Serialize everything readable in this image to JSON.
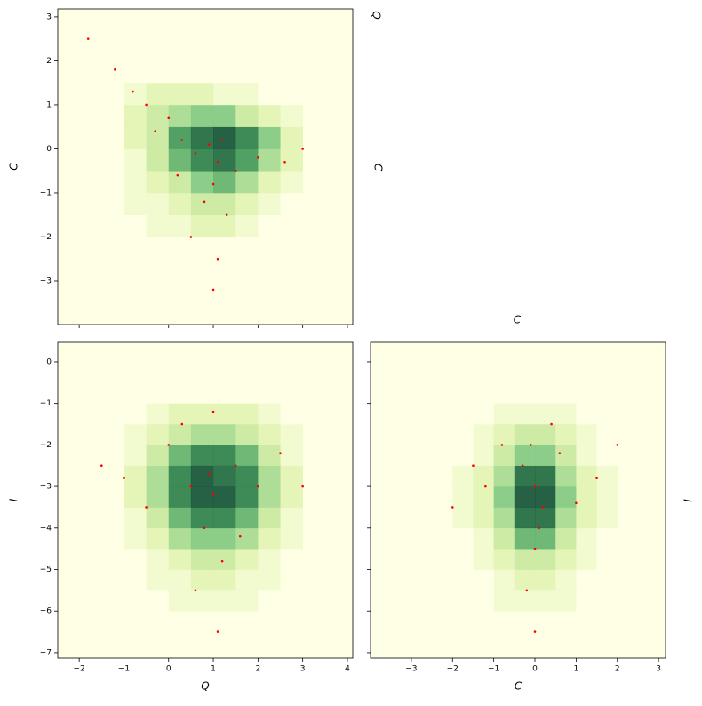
{
  "chart_data": [
    {
      "type": "hist2d",
      "x_label": "Q",
      "y_label": "C",
      "xlim": [
        -2.48,
        4.12
      ],
      "ylim": [
        -3.99,
        3.18
      ],
      "xticks": [
        {
          "value": -2,
          "label": "−2"
        },
        {
          "value": -1,
          "label": "−1"
        },
        0,
        1,
        2,
        3,
        4
      ],
      "yticks": [
        {
          "value": -3,
          "label": "−3"
        },
        {
          "value": -2,
          "label": "−2"
        },
        {
          "value": -1,
          "label": "−1"
        },
        0,
        1,
        2,
        3
      ],
      "show_xtick_labels": false,
      "show_ytick_labels": true,
      "x_bins": [
        -1,
        -0.5,
        0,
        0.5,
        1,
        1.5,
        2,
        2.5,
        3
      ],
      "y_bins": [
        -2,
        -1.5,
        -1,
        -0.5,
        0,
        0.5,
        1,
        1.5
      ],
      "counts": [
        [
          0,
          1,
          1,
          2,
          2,
          1,
          0,
          0
        ],
        [
          1,
          1,
          2,
          3,
          3,
          2,
          1,
          0
        ],
        [
          1,
          2,
          3,
          5,
          6,
          4,
          2,
          1
        ],
        [
          1,
          3,
          6,
          8,
          9,
          7,
          4,
          2
        ],
        [
          2,
          3,
          7,
          9,
          10,
          8,
          5,
          2
        ],
        [
          2,
          3,
          4,
          5,
          5,
          3,
          2,
          1
        ],
        [
          1,
          2,
          2,
          2,
          1,
          1,
          0,
          0
        ]
      ],
      "points": {
        "x": [
          -1.8,
          -1.2,
          -0.8,
          -0.5,
          0,
          0.3,
          0.6,
          0.9,
          1.1,
          1.2,
          1.0,
          0.8,
          1.3,
          0.5,
          1.1,
          2,
          2.6,
          3.0,
          1.5,
          0.2,
          -0.3,
          1.0
        ],
        "y": [
          2.5,
          1.8,
          1.3,
          1,
          0.7,
          0.2,
          -0.1,
          0.1,
          -0.3,
          0.2,
          -0.8,
          -1.2,
          -1.5,
          -2,
          -2.5,
          -0.2,
          -0.3,
          0,
          -0.5,
          -0.6,
          0.4,
          -3.2
        ]
      }
    },
    {
      "type": "hist2d",
      "x_label": "Q",
      "y_label": "I",
      "xlim": [
        -2.48,
        4.12
      ],
      "ylim": [
        -7.13,
        0.47
      ],
      "xticks": [
        {
          "value": -2,
          "label": "−2"
        },
        {
          "value": -1,
          "label": "−1"
        },
        0,
        1,
        2,
        3,
        4
      ],
      "yticks": [
        {
          "value": -7,
          "label": "−7"
        },
        {
          "value": -6,
          "label": "−6"
        },
        {
          "value": -5,
          "label": "−5"
        },
        {
          "value": -4,
          "label": "−4"
        },
        {
          "value": -3,
          "label": "−3"
        },
        {
          "value": -2,
          "label": "−2"
        },
        {
          "value": -1,
          "label": "−1"
        },
        0
      ],
      "show_xtick_labels": true,
      "show_ytick_labels": true,
      "x_bins": [
        -1,
        -0.5,
        0,
        0.5,
        1,
        1.5,
        2,
        2.5,
        3
      ],
      "y_bins": [
        -6,
        -5.5,
        -5,
        -4.5,
        -4,
        -3.5,
        -3,
        -2.5,
        -2,
        -1.5,
        -1
      ],
      "counts": [
        [
          0,
          0,
          1,
          1,
          1,
          1,
          0,
          0
        ],
        [
          0,
          1,
          1,
          2,
          2,
          1,
          1,
          0
        ],
        [
          0,
          1,
          2,
          3,
          3,
          2,
          1,
          0
        ],
        [
          1,
          2,
          4,
          5,
          5,
          4,
          2,
          1
        ],
        [
          1,
          3,
          6,
          8,
          8,
          6,
          3,
          1
        ],
        [
          2,
          4,
          8,
          10,
          10,
          8,
          4,
          2
        ],
        [
          2,
          4,
          8,
          10,
          9,
          8,
          4,
          2
        ],
        [
          1,
          3,
          6,
          8,
          8,
          6,
          3,
          1
        ],
        [
          1,
          2,
          3,
          4,
          4,
          3,
          2,
          1
        ],
        [
          0,
          1,
          2,
          2,
          2,
          2,
          1,
          0
        ]
      ],
      "points": {
        "x": [
          0,
          0.5,
          1,
          1.5,
          0.8,
          1.2,
          -0.5,
          2,
          2.5,
          0.3,
          1,
          -1,
          1.6,
          0.6,
          1.1,
          0.9,
          3,
          -1.5
        ],
        "y": [
          -2,
          -3,
          -3.2,
          -2.5,
          -4,
          -4.8,
          -3.5,
          -3,
          -2.2,
          -1.5,
          -1.2,
          -2.8,
          -4.2,
          -5.5,
          -6.5,
          -2.7,
          -3,
          -2.5
        ]
      }
    },
    {
      "type": "hist2d",
      "x_label": "C",
      "y_label": null,
      "xlim": [
        -3.99,
        3.17
      ],
      "ylim": [
        -7.13,
        0.47
      ],
      "xticks": [
        {
          "value": -3,
          "label": "−3"
        },
        {
          "value": -2,
          "label": "−2"
        },
        {
          "value": -1,
          "label": "−1"
        },
        0,
        1,
        2,
        3
      ],
      "yticks": [
        -7,
        -6,
        -5,
        -4,
        -3,
        -2,
        -1,
        0
      ],
      "show_xtick_labels": true,
      "show_ytick_labels": false,
      "x_bins": [
        -2,
        -1.5,
        -1,
        -0.5,
        0,
        0.5,
        1,
        1.5,
        2
      ],
      "y_bins": [
        -6,
        -5.5,
        -5,
        -4.5,
        -4,
        -3.5,
        -3,
        -2.5,
        -2,
        -1.5,
        -1
      ],
      "counts": [
        [
          0,
          0,
          1,
          1,
          1,
          1,
          0,
          0
        ],
        [
          0,
          0,
          1,
          2,
          2,
          1,
          0,
          0
        ],
        [
          0,
          1,
          2,
          3,
          3,
          2,
          1,
          0
        ],
        [
          0,
          1,
          3,
          6,
          6,
          3,
          1,
          0
        ],
        [
          1,
          2,
          4,
          9,
          9,
          4,
          2,
          1
        ],
        [
          1,
          2,
          5,
          10,
          10,
          5,
          2,
          1
        ],
        [
          1,
          2,
          4,
          9,
          9,
          4,
          2,
          1
        ],
        [
          0,
          1,
          3,
          5,
          5,
          3,
          1,
          0
        ],
        [
          0,
          1,
          2,
          3,
          3,
          2,
          1,
          0
        ],
        [
          0,
          0,
          1,
          1,
          1,
          1,
          0,
          0
        ]
      ],
      "points": {
        "x": [
          0,
          -0.3,
          0.2,
          -0.8,
          0.6,
          -1.2,
          1,
          0,
          -0.2,
          0.4,
          -1.5,
          1.5,
          -0.1,
          0.1,
          2,
          -2,
          0
        ],
        "y": [
          -3,
          -2.5,
          -3.5,
          -2,
          -2.2,
          -3,
          -3.4,
          -4.5,
          -5.5,
          -1.5,
          -2.5,
          -2.8,
          -2,
          -4,
          -2,
          -3.5,
          -6.5
        ]
      }
    }
  ],
  "colormap": [
    "#ffffe5",
    "#d9f0a3",
    "#78c679",
    "#238443",
    "#004529"
  ],
  "point_color": "#ff0000",
  "extra_labels": [
    "Q",
    "C",
    "C",
    "I"
  ]
}
